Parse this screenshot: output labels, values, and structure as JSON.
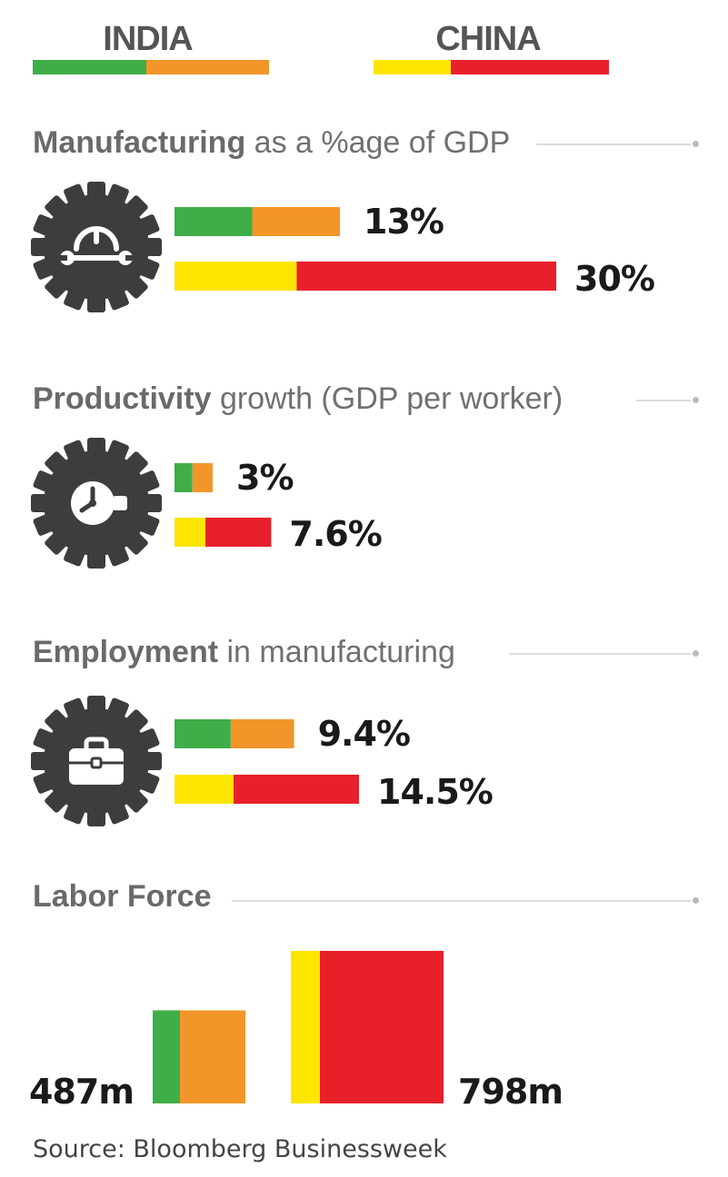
{
  "legend": {
    "india_label": "INDIA",
    "china_label": "CHINA"
  },
  "colors": {
    "india_primary": "#3fae49",
    "india_secondary": "#f3962a",
    "china_primary": "#fce600",
    "china_secondary": "#e8202a",
    "icon_dark": "#3b3d3f"
  },
  "icons": [
    "gear-with-wrench-icon",
    "gear-with-clock-icon",
    "gear-with-briefcase-icon"
  ],
  "chart_data": [
    {
      "type": "bar",
      "title_bold": "Manufacturing",
      "title_rest": "as a %age of GDP",
      "series": [
        {
          "name": "INDIA",
          "value": 13,
          "label": "13%"
        },
        {
          "name": "CHINA",
          "value": 30,
          "label": "30%"
        }
      ]
    },
    {
      "type": "bar",
      "title_bold": "Productivity",
      "title_rest": "growth (GDP per worker)",
      "series": [
        {
          "name": "INDIA",
          "value": 3,
          "label": "3%"
        },
        {
          "name": "CHINA",
          "value": 7.6,
          "label": "7.6%"
        }
      ]
    },
    {
      "type": "bar",
      "title_bold": "Employment",
      "title_rest": "in manufacturing",
      "series": [
        {
          "name": "INDIA",
          "value": 9.4,
          "label": "9.4%"
        },
        {
          "name": "CHINA",
          "value": 14.5,
          "label": "14.5%"
        }
      ]
    },
    {
      "type": "bar",
      "title_bold": "Labor Force",
      "title_rest": "",
      "unit": "million",
      "series": [
        {
          "name": "INDIA",
          "value": 487,
          "label": "487m"
        },
        {
          "name": "CHINA",
          "value": 798,
          "label": "798m"
        }
      ]
    }
  ],
  "source": "Source: Bloomberg Businessweek"
}
